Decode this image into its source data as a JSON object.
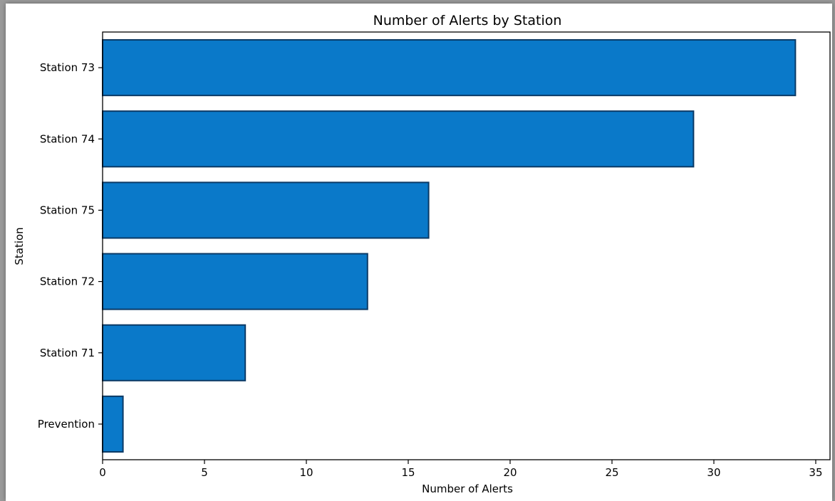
{
  "chart_data": {
    "type": "bar",
    "orientation": "horizontal",
    "title": "Number of Alerts by Station",
    "xlabel": "Number of Alerts",
    "ylabel": "Station",
    "categories": [
      "Station 73",
      "Station 74",
      "Station 75",
      "Station 72",
      "Station 71",
      "Prevention"
    ],
    "values": [
      34,
      29,
      16,
      13,
      7,
      1
    ],
    "xlim": [
      0,
      35.7
    ],
    "xticks": [
      0,
      5,
      10,
      15,
      20,
      25,
      30,
      35
    ],
    "grid": false,
    "legend": "none",
    "colors": {
      "bar_fill": "#0a79c9",
      "bar_edge": "#0b3a66",
      "axis": "#000000"
    }
  }
}
